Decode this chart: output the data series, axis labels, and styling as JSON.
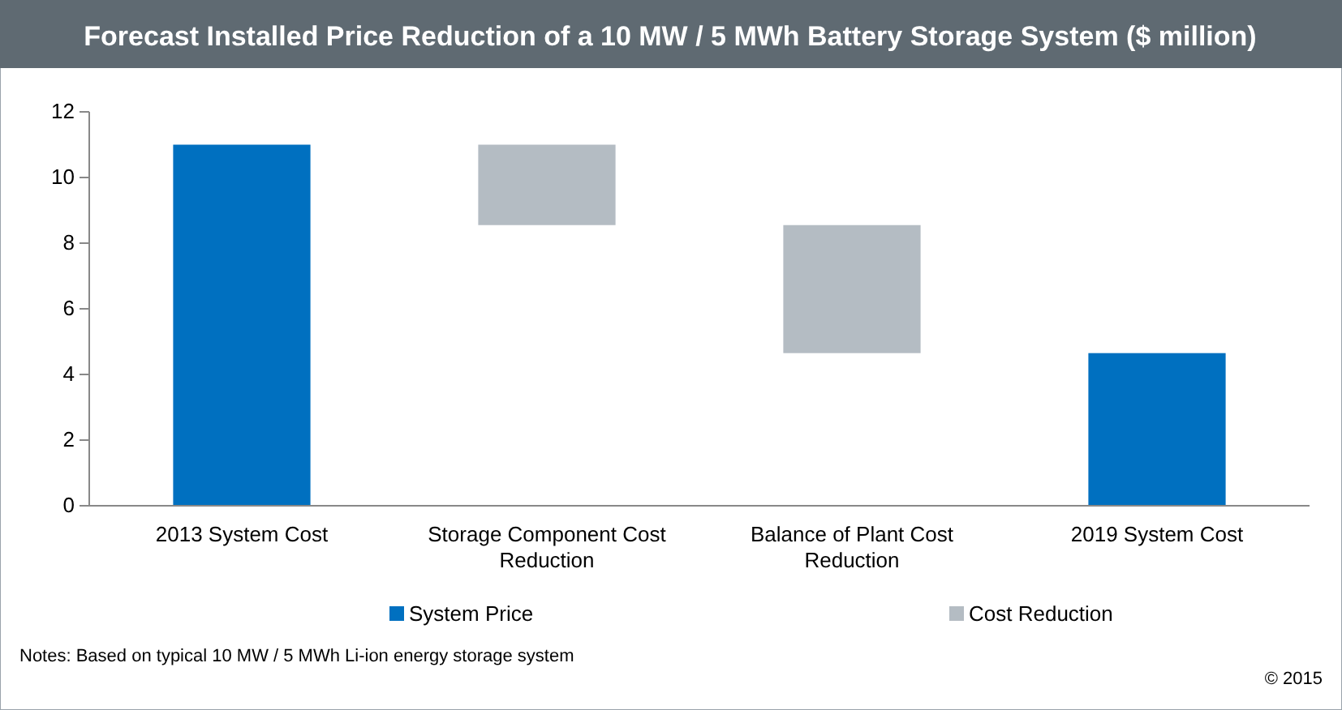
{
  "chart_data": {
    "type": "bar",
    "title": "Forecast Installed Price Reduction of a 10 MW / 5 MWh Battery Storage System ($ million)",
    "categories": [
      "2013 System Cost",
      "Storage Component Cost Reduction",
      "Balance of Plant Cost Reduction",
      "2019 System Cost"
    ],
    "series": [
      {
        "name": "System Price",
        "color": "#0070c0",
        "values": [
          11,
          null,
          null,
          4.65
        ],
        "base": [
          0,
          null,
          null,
          0
        ]
      },
      {
        "name": "Cost Reduction",
        "color": "#b4bcc3",
        "values": [
          null,
          2.45,
          3.9,
          null
        ],
        "base": [
          null,
          8.55,
          4.65,
          null
        ]
      }
    ],
    "ylim": [
      0,
      12
    ],
    "yticks": [
      0,
      2,
      4,
      6,
      8,
      10,
      12
    ],
    "grid": false,
    "legend": "bottom",
    "annotations": [
      "Notes: Based on typical 10 MW / 5 MWh Li-ion energy storage system",
      "© 2015"
    ]
  }
}
